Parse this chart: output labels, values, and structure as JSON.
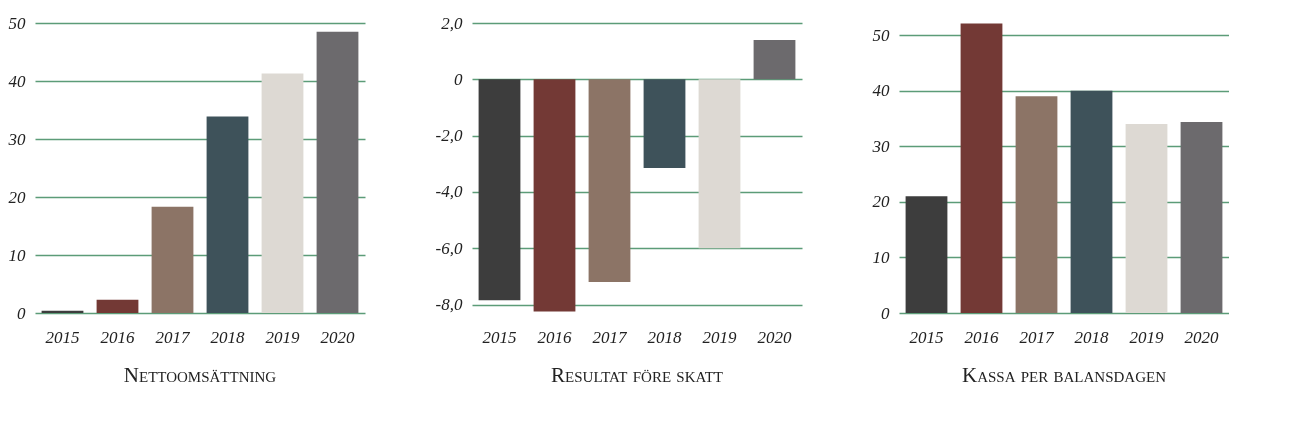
{
  "chart_data": [
    {
      "type": "bar",
      "title": "Nettoomsättning",
      "categories": [
        "2015",
        "2016",
        "2017",
        "2018",
        "2019",
        "2020"
      ],
      "values": [
        0.4,
        2.3,
        18.3,
        33.9,
        41.3,
        48.5
      ],
      "colors": [
        "#3d3d3d",
        "#733935",
        "#8c7466",
        "#3e525a",
        "#ddd9d3",
        "#6c6a6d"
      ],
      "ylim": [
        0,
        50
      ],
      "yticks": [
        0,
        10,
        20,
        30,
        40,
        50
      ],
      "grid": "y"
    },
    {
      "type": "bar",
      "title": "Resultat före skatt",
      "categories": [
        "2015",
        "2016",
        "2017",
        "2018",
        "2019",
        "2020"
      ],
      "values": [
        -7.85,
        -8.25,
        -7.2,
        -3.15,
        -6.0,
        1.4
      ],
      "colors": [
        "#3d3d3d",
        "#733935",
        "#8c7466",
        "#3e525a",
        "#ddd9d3",
        "#6c6a6d"
      ],
      "ylim": [
        -8.3,
        2.0
      ],
      "yticks": [
        {
          "value": -8,
          "label": "-8,0"
        },
        {
          "value": -6,
          "label": "-6,0"
        },
        {
          "value": -4,
          "label": "-4,0"
        },
        {
          "value": -2,
          "label": "-2,0"
        },
        0,
        {
          "value": 2,
          "label": "2,0"
        }
      ],
      "grid": "y"
    },
    {
      "type": "bar",
      "title": "Kassa per balansdagen",
      "categories": [
        "2015",
        "2016",
        "2017",
        "2018",
        "2019",
        "2020"
      ],
      "values": [
        21,
        52.1,
        39,
        40,
        34,
        34.4
      ],
      "colors": [
        "#3d3d3d",
        "#733935",
        "#8c7466",
        "#3e525a",
        "#ddd9d3",
        "#6c6a6d"
      ],
      "ylim": [
        0,
        52.2
      ],
      "yticks": [
        0,
        10,
        20,
        30,
        40,
        50
      ],
      "grid": "y"
    }
  ]
}
